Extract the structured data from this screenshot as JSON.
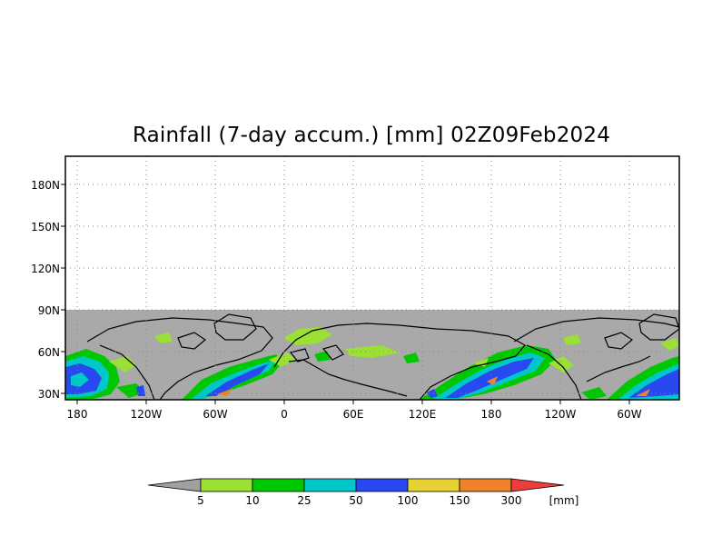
{
  "title": "Rainfall (7-day accum.) [mm] 02Z09Feb2024",
  "map": {
    "projection": "cylindrical",
    "lat_labels": [
      "180N",
      "150N",
      "120N",
      "90N",
      "60N",
      "30N"
    ],
    "lon_labels": [
      "180",
      "120W",
      "60W",
      "0",
      "60E",
      "120E",
      "180",
      "120W",
      "60W"
    ],
    "land_mask_color": "#a9a9a9",
    "coastline_color": "#000000",
    "grid": "dotted"
  },
  "colorbar": {
    "unit": "[mm]",
    "levels": [
      "5",
      "10",
      "25",
      "50",
      "100",
      "150",
      "300"
    ],
    "colors": [
      "#a0a0a0",
      "#9be035",
      "#00c800",
      "#00c8c8",
      "#2848f0",
      "#e6d232",
      "#f08228",
      "#f03c3c"
    ]
  }
}
